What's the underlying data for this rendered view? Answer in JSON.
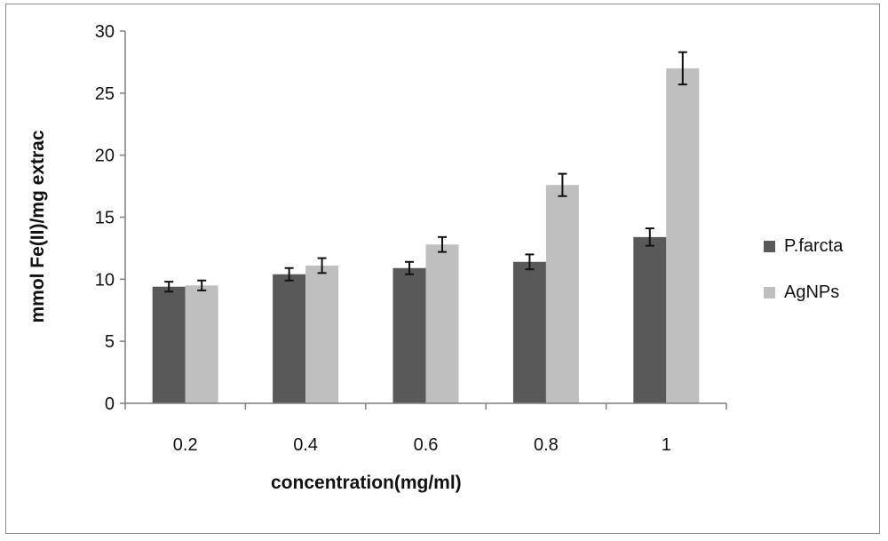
{
  "chart_data": {
    "type": "bar",
    "categories": [
      "0.2",
      "0.4",
      "0.6",
      "0.8",
      "1"
    ],
    "series": [
      {
        "name": "P.farcta",
        "values": [
          9.4,
          10.4,
          10.9,
          11.4,
          13.4
        ],
        "errors": [
          0.4,
          0.5,
          0.5,
          0.6,
          0.7
        ],
        "color": "#595959"
      },
      {
        "name": "AgNPs",
        "values": [
          9.5,
          11.1,
          12.8,
          17.6,
          27.0
        ],
        "errors": [
          0.4,
          0.6,
          0.6,
          0.9,
          1.3
        ],
        "color": "#bfbfbf"
      }
    ],
    "xlabel": "concentration(mg/ml)",
    "ylabel": "mmol Fe(II)/mg extrac",
    "ylim": [
      0,
      30
    ],
    "yticks": [
      "0",
      "5",
      "10",
      "15",
      "20",
      "25",
      "30"
    ],
    "grid": false,
    "legend_position": "right"
  }
}
